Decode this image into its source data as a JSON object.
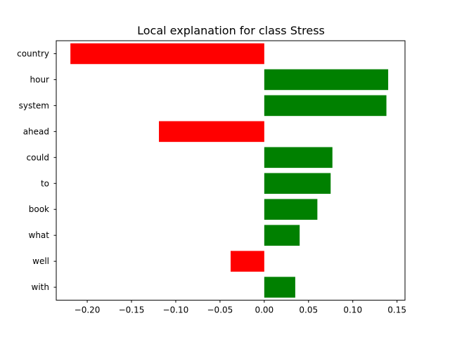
{
  "chart_data": {
    "type": "bar",
    "orientation": "horizontal",
    "title": "Local explanation for class Stress",
    "xlabel": "",
    "ylabel": "",
    "categories": [
      "country",
      "hour",
      "system",
      "ahead",
      "could",
      "to",
      "book",
      "what",
      "well",
      "with"
    ],
    "values": [
      -0.219,
      0.14,
      0.138,
      -0.119,
      0.077,
      0.075,
      0.06,
      0.04,
      -0.038,
      0.035
    ],
    "xlim": [
      -0.235,
      0.159
    ],
    "xticks": [
      -0.2,
      -0.15,
      -0.1,
      -0.05,
      0.0,
      0.05,
      0.1,
      0.15
    ],
    "xtick_labels": [
      "−0.20",
      "−0.15",
      "−0.10",
      "−0.05",
      "0.00",
      "0.05",
      "0.10",
      "0.15"
    ],
    "grid": false,
    "colors": {
      "positive": "#008000",
      "negative": "#ff0000"
    }
  }
}
